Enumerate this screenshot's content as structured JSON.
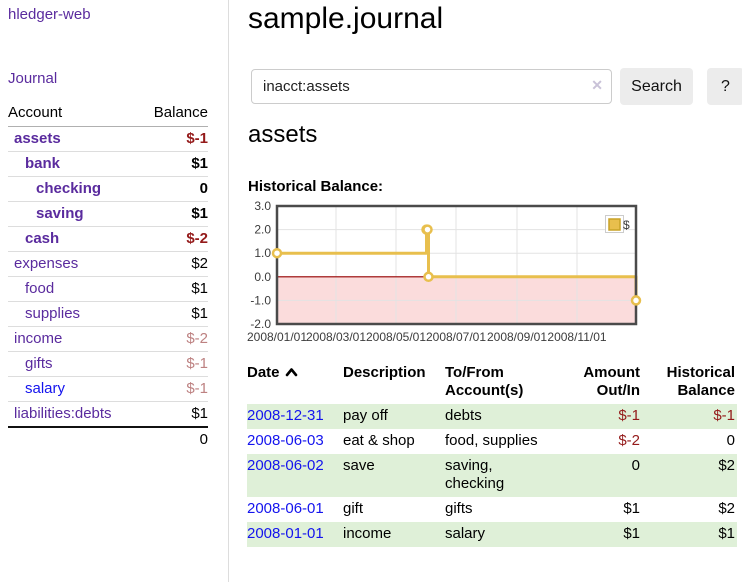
{
  "colors": {
    "purple": "#5a2b9e",
    "blue": "#1414ee",
    "negdark": "#941a1a",
    "negsoft": "#bd8181",
    "rowgreen": "#dff0d8",
    "divider": "#dddddd",
    "chart-gold": "#e8bf4d",
    "chart-gold-dark": "#c9a227",
    "chart-pink": "#fbdcdc",
    "chart-zero": "#990000"
  },
  "icons": {
    "sort_ascending": "chevron-up",
    "clear_search": "x-cross"
  },
  "sidebar": {
    "brand": "hledger-web",
    "nav_journal": "Journal",
    "header": {
      "account": "Account",
      "balance": "Balance"
    },
    "accounts": [
      {
        "name": "assets",
        "balance": "$-1",
        "level": 1,
        "bold": true,
        "amount_style": "neg-strong",
        "link": "purple"
      },
      {
        "name": "bank",
        "balance": "$1",
        "level": 2,
        "bold": true,
        "amount_style": "plain",
        "link": "purple"
      },
      {
        "name": "checking",
        "balance": "0",
        "level": 3,
        "bold": true,
        "amount_style": "plain",
        "link": "purple"
      },
      {
        "name": "saving",
        "balance": "$1",
        "level": 3,
        "bold": true,
        "amount_style": "plain",
        "link": "purple"
      },
      {
        "name": "cash",
        "balance": "$-2",
        "level": 2,
        "bold": true,
        "amount_style": "neg-strong",
        "link": "purple"
      },
      {
        "name": "expenses",
        "balance": "$2",
        "level": 1,
        "bold": false,
        "amount_style": "plain",
        "link": "purple"
      },
      {
        "name": "food",
        "balance": "$1",
        "level": 2,
        "bold": false,
        "amount_style": "plain",
        "link": "purple"
      },
      {
        "name": "supplies",
        "balance": "$1",
        "level": 2,
        "bold": false,
        "amount_style": "plain",
        "link": "purple"
      },
      {
        "name": "income",
        "balance": "$-2",
        "level": 1,
        "bold": false,
        "amount_style": "neg-soft",
        "link": "purple"
      },
      {
        "name": "gifts",
        "balance": "$-1",
        "level": 2,
        "bold": false,
        "amount_style": "neg-soft",
        "link": "purple"
      },
      {
        "name": "salary",
        "balance": "$-1",
        "level": 2,
        "bold": false,
        "amount_style": "neg-soft",
        "link": "blue"
      },
      {
        "name": "liabilities:debts",
        "balance": "$1",
        "level": 1,
        "bold": false,
        "amount_style": "plain",
        "link": "purple"
      }
    ],
    "total": "0"
  },
  "main": {
    "title": "sample.journal",
    "search": {
      "value": "inacct:assets",
      "clear": "✕",
      "button": "Search",
      "help": "?"
    },
    "account_heading": "assets",
    "section_label": "Historical Balance:"
  },
  "chart_data": {
    "type": "line",
    "title": "Historical Balance of assets",
    "step": true,
    "ylim": [
      -2,
      3
    ],
    "x_range": [
      "2008-01-01",
      "2008-12-31"
    ],
    "y_ticks": [
      {
        "v": 3,
        "label": "3.0"
      },
      {
        "v": 2,
        "label": "2.0"
      },
      {
        "v": 1,
        "label": "1.0"
      },
      {
        "v": 0,
        "label": "0.0"
      },
      {
        "v": -1,
        "label": "-1.0"
      },
      {
        "v": -2,
        "label": "-2.0"
      }
    ],
    "x_ticks": [
      {
        "date": "2008-01-01",
        "label": "2008/01/01"
      },
      {
        "date": "2008-03-01",
        "label": "2008/03/01"
      },
      {
        "date": "2008-05-01",
        "label": "2008/05/01"
      },
      {
        "date": "2008-07-01",
        "label": "2008/07/01"
      },
      {
        "date": "2008-09-01",
        "label": "2008/09/01"
      },
      {
        "date": "2008-11-01",
        "label": "2008/11/01"
      }
    ],
    "series": [
      {
        "name": "$",
        "points": [
          [
            "2008-01-01",
            1
          ],
          [
            "2008-06-01",
            2
          ],
          [
            "2008-06-02",
            2
          ],
          [
            "2008-06-03",
            0
          ],
          [
            "2008-12-31",
            -1
          ]
        ]
      }
    ],
    "legend": {
      "label": "$",
      "position": "top-right"
    },
    "grid": true
  },
  "register": {
    "headers": {
      "date": "Date",
      "description": "Description",
      "accounts": "To/From Account(s)",
      "amount": "Amount Out/In",
      "balance": "Historical Balance"
    },
    "rows": [
      {
        "date": "2008-12-31",
        "description": "pay off",
        "accounts": "debts",
        "amount": "$-1",
        "amount_negative": true,
        "balance": "$-1",
        "balance_negative": true
      },
      {
        "date": "2008-06-03",
        "description": "eat & shop",
        "accounts": "food, supplies",
        "amount": "$-2",
        "amount_negative": true,
        "balance": "0",
        "balance_negative": false
      },
      {
        "date": "2008-06-02",
        "description": "save",
        "accounts": "saving, checking",
        "amount": "0",
        "amount_negative": false,
        "balance": "$2",
        "balance_negative": false
      },
      {
        "date": "2008-06-01",
        "description": "gift",
        "accounts": "gifts",
        "amount": "$1",
        "amount_negative": false,
        "balance": "$2",
        "balance_negative": false
      },
      {
        "date": "2008-01-01",
        "description": "income",
        "accounts": "salary",
        "amount": "$1",
        "amount_negative": false,
        "balance": "$1",
        "balance_negative": false
      }
    ]
  }
}
